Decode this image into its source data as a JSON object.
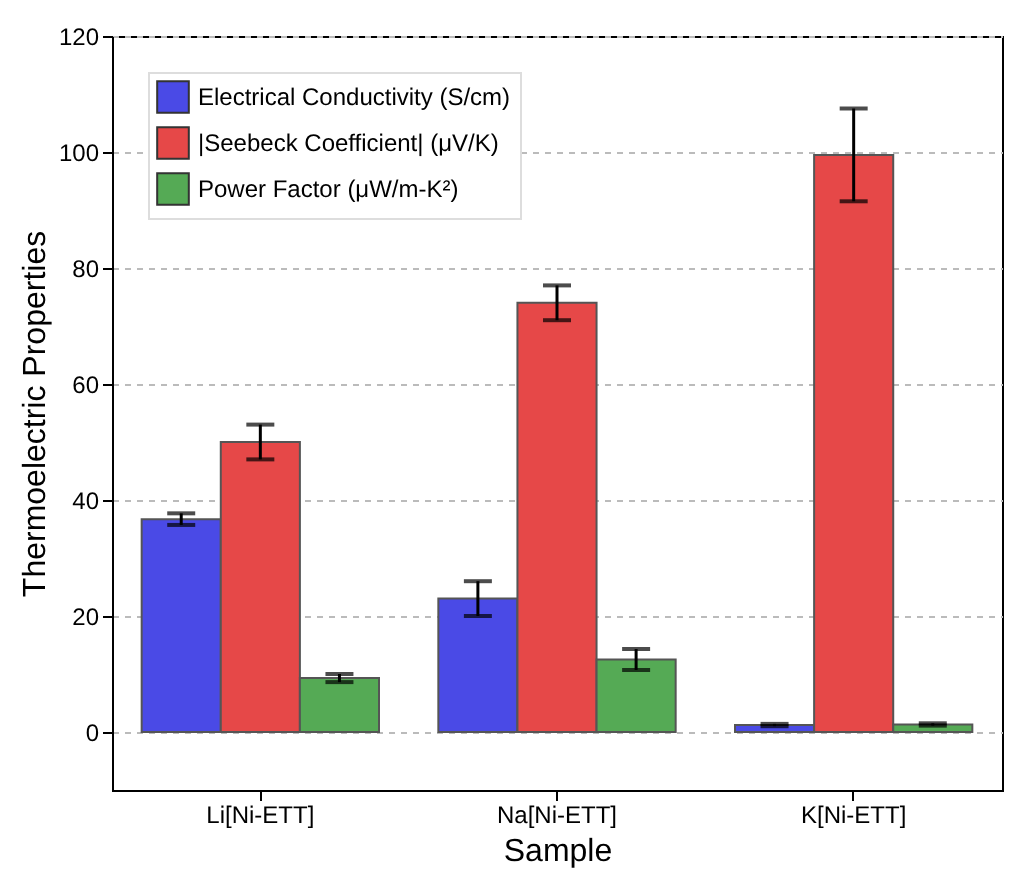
{
  "chart_data": {
    "type": "bar",
    "xlabel": "Sample",
    "ylabel": "Thermoelectric Properties",
    "categories": [
      "Li[Ni-ETT]",
      "Na[Ni-ETT]",
      "K[Ni-ETT]"
    ],
    "series": [
      {
        "name": "Electrical Conductivity (S/cm)",
        "color": "#4a4ae6",
        "values": [
          36.7,
          23,
          1.2
        ],
        "errors": [
          1,
          3,
          0.2
        ]
      },
      {
        "name": "|Seebeck Coefficient| (μV/K)",
        "color": "#e64848",
        "values": [
          50,
          74,
          99.5
        ],
        "errors": [
          3,
          3,
          8
        ]
      },
      {
        "name": "Power Factor (μW/m-K²)",
        "color": "#55aa55",
        "values": [
          9.3,
          12.5,
          1.3
        ],
        "errors": [
          0.7,
          1.8,
          0.2
        ]
      }
    ],
    "ylim": [
      -10,
      120
    ],
    "yticks": [
      0,
      20,
      40,
      60,
      80,
      100,
      120
    ],
    "grid": "y",
    "legend": "top left"
  }
}
